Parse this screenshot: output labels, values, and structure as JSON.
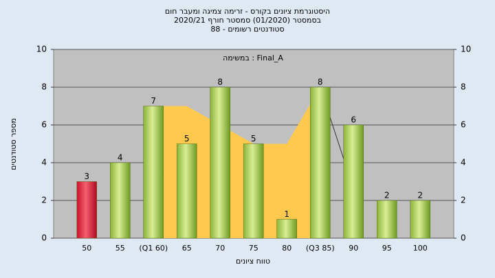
{
  "chart_data": {
    "type": "bar",
    "title": [
      "היסטוגרמת ציונים בקורס - זרימה צמיגה ומעבר חום",
      "בסמסטר  (01/2020)  סמסטר חורף 2020/21",
      "סטודנטים רשומים - 88"
    ],
    "legend_text": "במשימה : Final_A",
    "x_label": "טווח ציונים",
    "y_label": "מספר סטודנטים",
    "categories": [
      "50",
      "55",
      "(Q1 60)",
      "65",
      "70",
      "75",
      "80",
      "(Q3 85)",
      "90",
      "95",
      "100"
    ],
    "series": [
      {
        "name": "Final_A",
        "values": [
          3,
          4,
          7,
          5,
          8,
          5,
          1,
          8,
          6,
          2,
          2
        ],
        "colors": [
          "red",
          "green",
          "green",
          "green",
          "green",
          "green",
          "green",
          "green",
          "green",
          "green",
          "green"
        ]
      }
    ],
    "area": {
      "color": "#ffc94d",
      "values": [
        null,
        null,
        7,
        7,
        6,
        5,
        5,
        8,
        null,
        null,
        null
      ]
    },
    "trend": {
      "color": "#333333",
      "values": [
        null,
        null,
        null,
        null,
        null,
        null,
        null,
        8,
        2.6,
        null,
        null
      ]
    },
    "ylim": [
      0,
      10
    ],
    "yticks": [
      0,
      2,
      4,
      6,
      8,
      10
    ],
    "y2lim": [
      0,
      10
    ],
    "y2ticks": [
      0,
      2,
      4,
      6,
      8,
      10
    ],
    "grid": true
  }
}
